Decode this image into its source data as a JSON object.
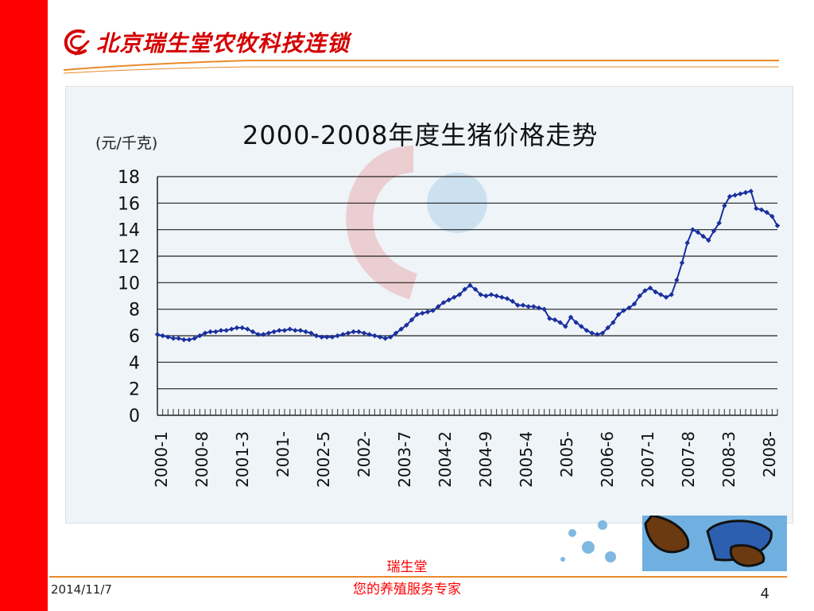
{
  "header": {
    "brand": "北京瑞生堂农牧科技连锁",
    "logo_icon": "swirl-logo-icon"
  },
  "chart_data": {
    "type": "line",
    "title": "2000-2008年度生猪价格走势",
    "ylabel": "(元/千克)",
    "xlabel": "",
    "ylim": [
      0,
      18
    ],
    "yticks": [
      "0",
      "2",
      "4",
      "6",
      "8",
      "10",
      "12",
      "14",
      "16",
      "18"
    ],
    "xticks": [
      "2000-1",
      "2000-8",
      "2001-3",
      "2001-",
      "2002-5",
      "2002-",
      "2003-7",
      "2004-2",
      "2004-9",
      "2005-4",
      "2005-",
      "2006-6",
      "2007-1",
      "2007-8",
      "2008-3",
      "2008-"
    ],
    "grid": true,
    "legend": "none",
    "series": [
      {
        "values": [
          6.1,
          6.0,
          5.9,
          5.8,
          5.8,
          5.7,
          5.7,
          5.8,
          6.0,
          6.2,
          6.3,
          6.3,
          6.4,
          6.4,
          6.5,
          6.6,
          6.6,
          6.5,
          6.3,
          6.1,
          6.1,
          6.2,
          6.3,
          6.4,
          6.4,
          6.5,
          6.4,
          6.4,
          6.3,
          6.2,
          6.0,
          5.9,
          5.9,
          5.9,
          6.0,
          6.1,
          6.2,
          6.3,
          6.3,
          6.2,
          6.1,
          6.0,
          5.9,
          5.8,
          5.9,
          6.2,
          6.5,
          6.8,
          7.2,
          7.6,
          7.7,
          7.8,
          7.9,
          8.2,
          8.5,
          8.7,
          8.9,
          9.1,
          9.5,
          9.8,
          9.5,
          9.1,
          9.0,
          9.1,
          9.0,
          8.9,
          8.8,
          8.6,
          8.3,
          8.3,
          8.2,
          8.2,
          8.1,
          8.0,
          7.3,
          7.2,
          7.0,
          6.7,
          7.4,
          7.0,
          6.7,
          6.4,
          6.2,
          6.1,
          6.2,
          6.6,
          7.0,
          7.6,
          7.9,
          8.1,
          8.4,
          9.0,
          9.4,
          9.6,
          9.3,
          9.1,
          8.9,
          9.1,
          10.2,
          11.5,
          13.0,
          14.0,
          13.8,
          13.5,
          13.2,
          13.9,
          14.5,
          15.8,
          16.5,
          16.6,
          16.7,
          16.8,
          16.9,
          15.6,
          15.5,
          15.3,
          15.0,
          14.3
        ]
      }
    ]
  },
  "footer": {
    "date": "2014/11/7",
    "line1": "瑞生堂",
    "line2": "您的养殖服务专家",
    "page": "4"
  },
  "colors": {
    "accent_red": "#ff0000",
    "brand_red": "#d40000",
    "line_blue": "#1a2f9e",
    "footer_orange": "#e88a2a"
  }
}
